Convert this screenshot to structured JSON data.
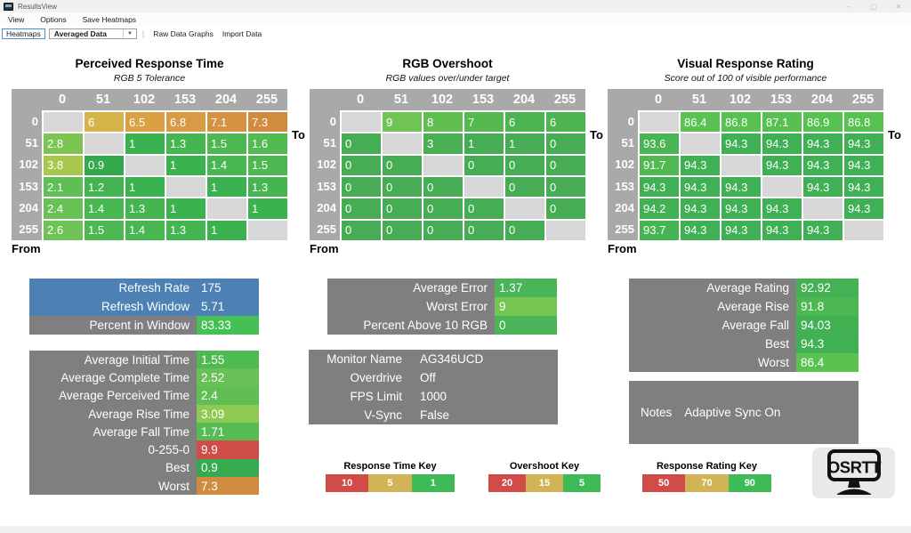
{
  "window": {
    "title": "ResultsView",
    "controls": {
      "minimize": "–",
      "maximize": "▢",
      "close": "✕"
    }
  },
  "menubar": {
    "items": [
      {
        "label": "View"
      },
      {
        "label": "Options"
      },
      {
        "label": "Save Heatmaps"
      }
    ]
  },
  "toolbar": {
    "heatmaps": "Heatmaps",
    "data_mode": "Averaged Data",
    "caret": "▼",
    "separator": "|",
    "raw_data_graphs": "Raw Data Graphs",
    "import_data": "Import Data"
  },
  "axes": {
    "levels": [
      "0",
      "51",
      "102",
      "153",
      "204",
      "255"
    ],
    "to_label": "To",
    "from_label": "From"
  },
  "heatmaps": [
    {
      "title": "Perceived Response Time",
      "subtitle": "RGB 5 Tolerance",
      "cells": [
        [
          null,
          {
            "v": "6",
            "c": "#d7b449"
          },
          {
            "v": "6.5",
            "c": "#daa144"
          },
          {
            "v": "6.8",
            "c": "#d89b43"
          },
          {
            "v": "7.1",
            "c": "#d59241"
          },
          {
            "v": "7.3",
            "c": "#d08b40"
          }
        ],
        [
          {
            "v": "2.8",
            "c": "#7dc553"
          },
          null,
          {
            "v": "1",
            "c": "#3bb250"
          },
          {
            "v": "1.3",
            "c": "#45b551"
          },
          {
            "v": "1.5",
            "c": "#4db852"
          },
          {
            "v": "1.6",
            "c": "#53ba52"
          }
        ],
        [
          {
            "v": "3.8",
            "c": "#a7c74d"
          },
          {
            "v": "0.9",
            "c": "#33a94e"
          },
          null,
          {
            "v": "1",
            "c": "#3bb250"
          },
          {
            "v": "1.4",
            "c": "#49b751"
          },
          {
            "v": "1.5",
            "c": "#4db852"
          }
        ],
        [
          {
            "v": "2.1",
            "c": "#60bf54"
          },
          {
            "v": "1.2",
            "c": "#41b450"
          },
          {
            "v": "1",
            "c": "#3bb250"
          },
          null,
          {
            "v": "1",
            "c": "#3bb250"
          },
          {
            "v": "1.3",
            "c": "#45b551"
          }
        ],
        [
          {
            "v": "2.4",
            "c": "#67c155"
          },
          {
            "v": "1.4",
            "c": "#49b751"
          },
          {
            "v": "1.3",
            "c": "#45b551"
          },
          {
            "v": "1",
            "c": "#3bb250"
          },
          null,
          {
            "v": "1",
            "c": "#3bb250"
          }
        ],
        [
          {
            "v": "2.6",
            "c": "#6fc256"
          },
          {
            "v": "1.5",
            "c": "#4db852"
          },
          {
            "v": "1.4",
            "c": "#49b751"
          },
          {
            "v": "1.3",
            "c": "#45b551"
          },
          {
            "v": "1",
            "c": "#3bb250"
          },
          null
        ]
      ]
    },
    {
      "title": "RGB Overshoot",
      "subtitle": "RGB values over/under target",
      "cells": [
        [
          null,
          {
            "v": "9",
            "c": "#70c453"
          },
          {
            "v": "8",
            "c": "#61be51"
          },
          {
            "v": "7",
            "c": "#55b950"
          },
          {
            "v": "6",
            "c": "#4cb551"
          },
          {
            "v": "6",
            "c": "#4cb551"
          }
        ],
        [
          {
            "v": "0",
            "c": "#46ad55"
          },
          null,
          {
            "v": "3",
            "c": "#48b053"
          },
          {
            "v": "1",
            "c": "#46ad55"
          },
          {
            "v": "1",
            "c": "#46ad55"
          },
          {
            "v": "0",
            "c": "#46ad55"
          }
        ],
        [
          {
            "v": "0",
            "c": "#46ad55"
          },
          {
            "v": "0",
            "c": "#46ad55"
          },
          null,
          {
            "v": "0",
            "c": "#46ad55"
          },
          {
            "v": "0",
            "c": "#46ad55"
          },
          {
            "v": "0",
            "c": "#46ad55"
          }
        ],
        [
          {
            "v": "0",
            "c": "#46ad55"
          },
          {
            "v": "0",
            "c": "#46ad55"
          },
          {
            "v": "0",
            "c": "#46ad55"
          },
          null,
          {
            "v": "0",
            "c": "#46ad55"
          },
          {
            "v": "0",
            "c": "#46ad55"
          }
        ],
        [
          {
            "v": "0",
            "c": "#46ad55"
          },
          {
            "v": "0",
            "c": "#46ad55"
          },
          {
            "v": "0",
            "c": "#46ad55"
          },
          {
            "v": "0",
            "c": "#46ad55"
          },
          null,
          {
            "v": "0",
            "c": "#46ad55"
          }
        ],
        [
          {
            "v": "0",
            "c": "#46ad55"
          },
          {
            "v": "0",
            "c": "#46ad55"
          },
          {
            "v": "0",
            "c": "#46ad55"
          },
          {
            "v": "0",
            "c": "#46ad55"
          },
          {
            "v": "0",
            "c": "#46ad55"
          },
          null
        ]
      ]
    },
    {
      "title": "Visual Response Rating",
      "subtitle": "Score out of 100 of visible performance",
      "cells": [
        [
          null,
          {
            "v": "86.4",
            "c": "#59c251"
          },
          {
            "v": "86.8",
            "c": "#57c151"
          },
          {
            "v": "87.1",
            "c": "#56c151"
          },
          {
            "v": "86.9",
            "c": "#57c151"
          },
          {
            "v": "86.8",
            "c": "#57c151"
          }
        ],
        [
          {
            "v": "93.6",
            "c": "#48b454"
          },
          null,
          {
            "v": "94.3",
            "c": "#3fb053"
          },
          {
            "v": "94.3",
            "c": "#3fb053"
          },
          {
            "v": "94.3",
            "c": "#3fb053"
          },
          {
            "v": "94.3",
            "c": "#3fb053"
          }
        ],
        [
          {
            "v": "91.7",
            "c": "#51b852"
          },
          {
            "v": "94.3",
            "c": "#3fb053"
          },
          null,
          {
            "v": "94.3",
            "c": "#3fb053"
          },
          {
            "v": "94.3",
            "c": "#3fb053"
          },
          {
            "v": "94.3",
            "c": "#3fb053"
          }
        ],
        [
          {
            "v": "94.3",
            "c": "#3fb053"
          },
          {
            "v": "94.3",
            "c": "#3fb053"
          },
          {
            "v": "94.3",
            "c": "#3fb053"
          },
          null,
          {
            "v": "94.3",
            "c": "#3fb053"
          },
          {
            "v": "94.3",
            "c": "#3fb053"
          }
        ],
        [
          {
            "v": "94.2",
            "c": "#41b153"
          },
          {
            "v": "94.3",
            "c": "#3fb053"
          },
          {
            "v": "94.3",
            "c": "#3fb053"
          },
          {
            "v": "94.3",
            "c": "#3fb053"
          },
          null,
          {
            "v": "94.3",
            "c": "#3fb053"
          }
        ],
        [
          {
            "v": "93.7",
            "c": "#47b454"
          },
          {
            "v": "94.3",
            "c": "#3fb053"
          },
          {
            "v": "94.3",
            "c": "#3fb053"
          },
          {
            "v": "94.3",
            "c": "#3fb053"
          },
          {
            "v": "94.3",
            "c": "#3fb053"
          },
          null
        ]
      ]
    }
  ],
  "panels": {
    "refresh": {
      "rows": [
        {
          "label": "Refresh Rate",
          "value": "175",
          "label_bg": "#4d80b4",
          "value_bg": "#4d80b4"
        },
        {
          "label": "Refresh Window",
          "value": "5.71",
          "label_bg": "#4d80b4",
          "value_bg": "#4d80b4"
        },
        {
          "label": "Percent in Window",
          "value": "83.33",
          "label_bg": "#7f7f7f",
          "value_bg": "#45c055"
        }
      ]
    },
    "times": {
      "rows": [
        {
          "label": "Average Initial Time",
          "value": "1.55",
          "label_bg": "#7f7f7f",
          "value_bg": "#4fb952"
        },
        {
          "label": "Average Complete Time",
          "value": "2.52",
          "label_bg": "#7f7f7f",
          "value_bg": "#67c156"
        },
        {
          "label": "Average Perceived Time",
          "value": "2.4",
          "label_bg": "#7f7f7f",
          "value_bg": "#60bf54"
        },
        {
          "label": "Average Rise Time",
          "value": "3.09",
          "label_bg": "#7f7f7f",
          "value_bg": "#8fc950"
        },
        {
          "label": "Average Fall Time",
          "value": "1.71",
          "label_bg": "#7f7f7f",
          "value_bg": "#55bb53"
        },
        {
          "label": "0-255-0",
          "value": "9.9",
          "label_bg": "#7f7f7f",
          "value_bg": "#d04c49"
        },
        {
          "label": "Best",
          "value": "0.9",
          "label_bg": "#7f7f7f",
          "value_bg": "#36aa4e"
        },
        {
          "label": "Worst",
          "value": "7.3",
          "label_bg": "#7f7f7f",
          "value_bg": "#d08b40"
        }
      ]
    },
    "error": {
      "rows": [
        {
          "label": "Average Error",
          "value": "1.37",
          "label_bg": "#7f7f7f",
          "value_bg": "#4ab558"
        },
        {
          "label": "Worst Error",
          "value": "9",
          "label_bg": "#7f7f7f",
          "value_bg": "#75c553"
        },
        {
          "label": "Percent Above 10 RGB",
          "value": "0",
          "label_bg": "#7f7f7f",
          "value_bg": "#4ab558"
        }
      ]
    },
    "monitor": {
      "rows": [
        {
          "label": "Monitor Name",
          "value": "AG346UCD",
          "label_bg": "#7f7f7f",
          "value_bg": "#7f7f7f"
        },
        {
          "label": "Overdrive",
          "value": "Off",
          "label_bg": "#7f7f7f",
          "value_bg": "#7f7f7f"
        },
        {
          "label": "FPS Limit",
          "value": "1000",
          "label_bg": "#7f7f7f",
          "value_bg": "#7f7f7f"
        },
        {
          "label": "V-Sync",
          "value": "False",
          "label_bg": "#7f7f7f",
          "value_bg": "#7f7f7f"
        }
      ]
    },
    "rating": {
      "rows": [
        {
          "label": "Average Rating",
          "value": "92.92",
          "label_bg": "#7f7f7f",
          "value_bg": "#44b254"
        },
        {
          "label": "Average Rise",
          "value": "91.8",
          "label_bg": "#7f7f7f",
          "value_bg": "#4db751"
        },
        {
          "label": "Average Fall",
          "value": "94.03",
          "label_bg": "#7f7f7f",
          "value_bg": "#41b153"
        },
        {
          "label": "Best",
          "value": "94.3",
          "label_bg": "#7f7f7f",
          "value_bg": "#3fb053"
        },
        {
          "label": "Worst",
          "value": "86.4",
          "label_bg": "#7f7f7f",
          "value_bg": "#59c251"
        }
      ]
    }
  },
  "notes": {
    "label": "Notes",
    "value": "Adaptive Sync On"
  },
  "keys": [
    {
      "title": "Response Time Key",
      "stops": [
        {
          "v": "10",
          "c": "#d14b49"
        },
        {
          "v": "5",
          "c": "#d2b456"
        },
        {
          "v": "1",
          "c": "#3eba56"
        }
      ]
    },
    {
      "title": "Overshoot Key",
      "stops": [
        {
          "v": "20",
          "c": "#d14b49"
        },
        {
          "v": "15",
          "c": "#d2b456"
        },
        {
          "v": "5",
          "c": "#3eba56"
        }
      ]
    },
    {
      "title": "Response Rating Key",
      "stops": [
        {
          "v": "50",
          "c": "#d14b49"
        },
        {
          "v": "70",
          "c": "#d2b456"
        },
        {
          "v": "90",
          "c": "#3eba56"
        }
      ]
    }
  ],
  "logo": {
    "text": "OSRTT"
  }
}
